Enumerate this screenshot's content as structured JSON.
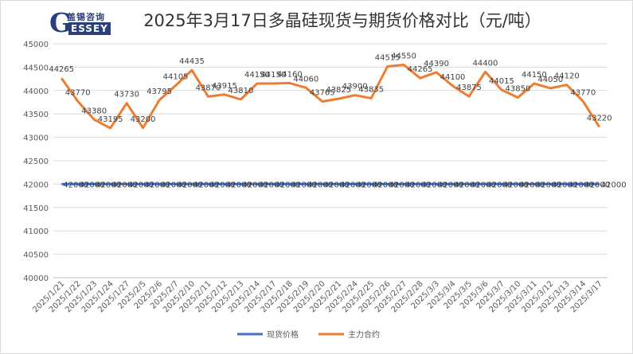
{
  "brand": {
    "name_cn": "盖锡咨询",
    "logo_letter": "G",
    "name_en": "ESSEY"
  },
  "chart_data": {
    "type": "line",
    "title": "2025年3月17日多晶硅现货与期货价格对比（元/吨）",
    "ylim": [
      40000,
      45000
    ],
    "yticks": [
      40000,
      40500,
      41000,
      41500,
      42000,
      42500,
      43000,
      43500,
      44000,
      44500,
      45000
    ],
    "grid": true,
    "legend_position": "bottom",
    "categories": [
      "2025/1/21",
      "2025/1/22",
      "2025/1/23",
      "2025/1/24",
      "2025/1/27",
      "2025/2/5",
      "2025/2/6",
      "2025/2/7",
      "2025/2/10",
      "2025/2/11",
      "2025/2/12",
      "2025/2/13",
      "2025/2/14",
      "2025/2/17",
      "2025/2/18",
      "2025/2/19",
      "2025/2/20",
      "2025/2/21",
      "2025/2/24",
      "2025/2/25",
      "2025/2/26",
      "2025/2/27",
      "2025/2/28",
      "2025/3/3",
      "2025/3/4",
      "2025/3/5",
      "2025/3/6",
      "2025/3/7",
      "2025/3/10",
      "2025/3/11",
      "2025/3/12",
      "2025/3/13",
      "2025/3/14",
      "2025/3/17"
    ],
    "series": [
      {
        "name": "现货价格",
        "color": "#4472C4",
        "values": [
          42000,
          42000,
          42000,
          42000,
          42000,
          42000,
          42000,
          42000,
          42000,
          42000,
          42000,
          42000,
          42000,
          42000,
          42000,
          42000,
          42000,
          42000,
          42000,
          42000,
          42000,
          42000,
          42000,
          42000,
          42000,
          42000,
          42000,
          42000,
          42000,
          42000,
          42000,
          42000,
          42000,
          42000
        ]
      },
      {
        "name": "主力合约",
        "color": "#ED7D31",
        "values": [
          44265,
          43770,
          43380,
          43195,
          43730,
          43200,
          43795,
          44105,
          44435,
          43870,
          43915,
          43810,
          44150,
          44150,
          44160,
          44060,
          43765,
          43825,
          43900,
          43835,
          44515,
          44550,
          44265,
          44390,
          44100,
          43875,
          44400,
          44015,
          43850,
          44150,
          44050,
          44120,
          43770,
          43220
        ]
      }
    ]
  }
}
